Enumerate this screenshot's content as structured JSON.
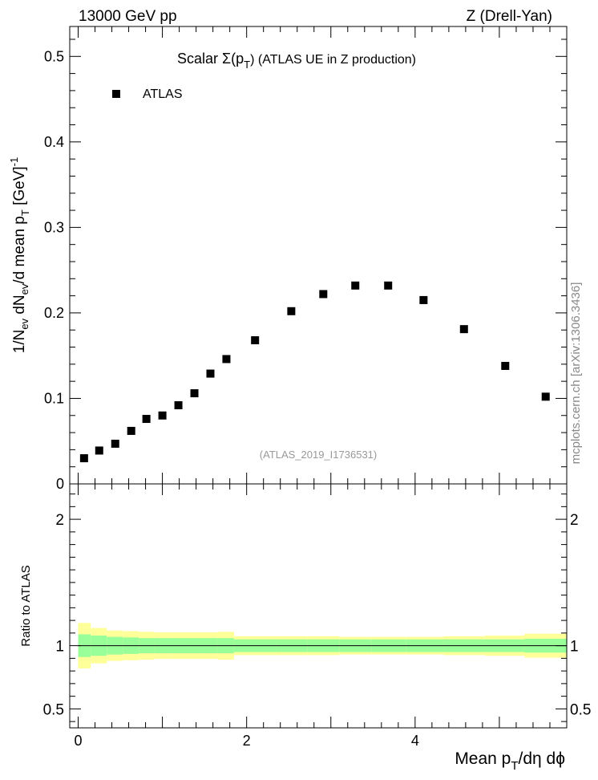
{
  "header": {
    "left": "13000 GeV pp",
    "right": "Z (Drell-Yan)"
  },
  "side_label": "mcplots.cern.ch [arXiv:1306.3436]",
  "chart_data": [
    {
      "type": "scatter",
      "title_main": "Scalar Σ(p",
      "title_sub": "T",
      "title_tail": ") (ATLAS UE in Z production)",
      "legend": {
        "label": "ATLAS",
        "position": "top-left"
      },
      "watermark": "(ATLAS_2019_I1736531)",
      "ylabel": "1/N_ev dN_ev/d mean p_T [GeV]^-1",
      "ylabel_parts": {
        "a": "1/N",
        "b": "ev",
        "c": " dN",
        "d": "ev",
        "e": "/d mean p",
        "f": "T",
        "g": " [GeV]",
        "h": "-1"
      },
      "xlim": [
        -0.1,
        5.8
      ],
      "ylim": [
        0,
        0.535
      ],
      "yticks": [
        {
          "value": 0,
          "label": "0"
        },
        {
          "value": 0.1,
          "label": "0.1"
        },
        {
          "value": 0.2,
          "label": "0.2"
        },
        {
          "value": 0.3,
          "label": "0.3"
        },
        {
          "value": 0.4,
          "label": "0.4"
        },
        {
          "value": 0.5,
          "label": "0.5"
        }
      ],
      "series": [
        {
          "name": "ATLAS",
          "x": [
            0.07,
            0.25,
            0.44,
            0.63,
            0.81,
            1.0,
            1.19,
            1.38,
            1.57,
            1.76,
            2.1,
            2.53,
            2.91,
            3.29,
            3.68,
            4.1,
            4.58,
            5.07,
            5.55
          ],
          "y": [
            0.03,
            0.039,
            0.047,
            0.062,
            0.076,
            0.08,
            0.092,
            0.106,
            0.129,
            0.146,
            0.168,
            0.202,
            0.222,
            0.232,
            0.232,
            0.215,
            0.181,
            0.138,
            0.102
          ]
        }
      ]
    },
    {
      "type": "area",
      "ylabel": "Ratio to ATLAS",
      "xlabel_parts": {
        "a": "Mean p",
        "b": "T",
        "c": "/dη dϕ"
      },
      "xlim": [
        -0.1,
        5.8
      ],
      "ylim": [
        0.35,
        2.28
      ],
      "xticks": [
        {
          "value": 0,
          "label": "0"
        },
        {
          "value": 2,
          "label": "2"
        },
        {
          "value": 4,
          "label": "4"
        }
      ],
      "yticks": [
        {
          "value": 0.5,
          "label": "0.5"
        },
        {
          "value": 1,
          "label": "1"
        },
        {
          "value": 2,
          "label": "2"
        }
      ],
      "bands": {
        "edges": [
          0,
          0.15,
          0.34,
          0.53,
          0.72,
          0.9,
          1.09,
          1.28,
          1.47,
          1.66,
          1.85,
          2.35,
          2.72,
          3.1,
          3.48,
          3.89,
          4.34,
          4.83,
          5.3,
          5.8
        ],
        "inner": [
          0.09,
          0.08,
          0.07,
          0.065,
          0.06,
          0.06,
          0.06,
          0.06,
          0.06,
          0.06,
          0.05,
          0.05,
          0.05,
          0.05,
          0.05,
          0.05,
          0.05,
          0.05,
          0.055
        ],
        "outer": [
          0.18,
          0.14,
          0.12,
          0.115,
          0.11,
          0.105,
          0.105,
          0.105,
          0.105,
          0.11,
          0.075,
          0.075,
          0.075,
          0.07,
          0.07,
          0.07,
          0.075,
          0.08,
          0.095
        ],
        "inner_color": "#99ff99",
        "outer_color": "#ffff99"
      },
      "reference_line": 1
    }
  ]
}
